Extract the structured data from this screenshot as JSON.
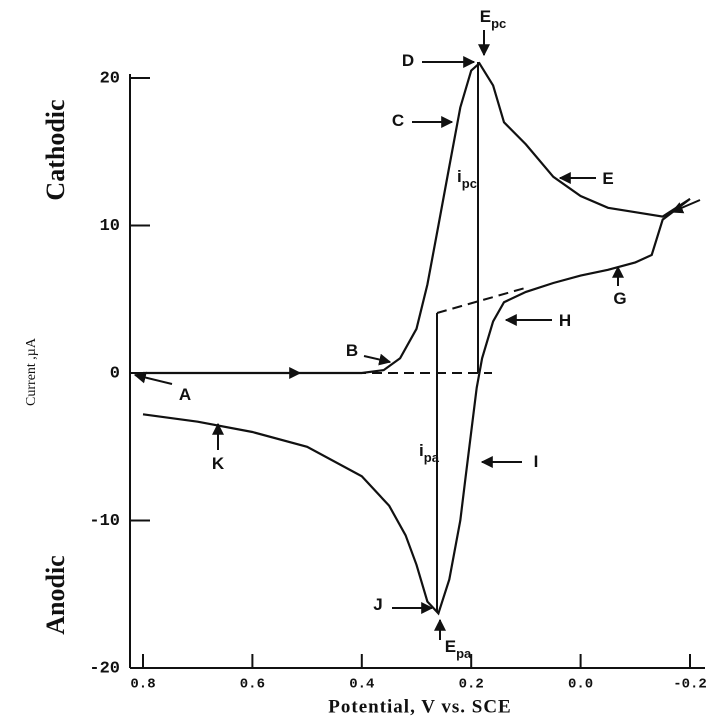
{
  "chart_data": {
    "type": "line",
    "x_label": "Potential, V vs. SCE",
    "y_label": "Current ,µA",
    "upper_label": "Cathodic",
    "lower_label": "Anodic",
    "color": "#111111",
    "x": [
      0.8,
      0.7,
      0.6,
      0.5,
      0.4,
      0.36,
      0.33,
      0.3,
      0.28,
      0.26,
      0.24,
      0.22,
      0.2,
      0.185,
      0.16,
      0.14,
      0.1,
      0.05,
      0.0,
      -0.05,
      -0.1,
      -0.15,
      -0.2,
      -0.15,
      -0.13,
      -0.1,
      -0.05,
      0.0,
      0.05,
      0.1,
      0.14,
      0.16,
      0.18,
      0.19,
      0.2,
      0.21,
      0.22,
      0.24,
      0.26,
      0.28,
      0.3,
      0.32,
      0.35,
      0.4,
      0.5,
      0.6,
      0.7,
      0.8
    ],
    "values": [
      0,
      0,
      0,
      0,
      0,
      0.2,
      1,
      3,
      6,
      10,
      14,
      18,
      20.5,
      21,
      19.5,
      17,
      15.5,
      13.3,
      12,
      11.2,
      10.9,
      10.6,
      11.8,
      10.4,
      8,
      7.5,
      7,
      6.6,
      6.1,
      5.5,
      4.8,
      3.5,
      1,
      -1,
      -4,
      -7,
      -10,
      -14,
      -16.3,
      -15.5,
      -13,
      -11,
      -9,
      -7,
      -5,
      -4,
      -3.3,
      -2.8
    ],
    "xlim": [
      0.8,
      -0.2
    ],
    "ylim": [
      -20,
      20
    ],
    "xticks": [
      0.8,
      0.6,
      0.4,
      0.2,
      {
        "value": 0,
        "label": "0.0"
      },
      -0.2
    ],
    "yticks": [
      20,
      10,
      0,
      -10,
      -20
    ],
    "annotations": [
      {
        "text": "A"
      },
      {
        "text": "B"
      },
      {
        "text": "C"
      },
      {
        "text": "D"
      },
      {
        "text": "E",
        "sub": "pc"
      },
      {
        "text": "i",
        "sub": "pc"
      },
      {
        "text": "E"
      },
      {
        "text": "G"
      },
      {
        "text": "H"
      },
      {
        "text": "I"
      },
      {
        "text": "i",
        "sub": "pa"
      },
      {
        "text": "J"
      },
      {
        "text": "E",
        "sub": "pa"
      },
      {
        "text": "K"
      }
    ]
  }
}
